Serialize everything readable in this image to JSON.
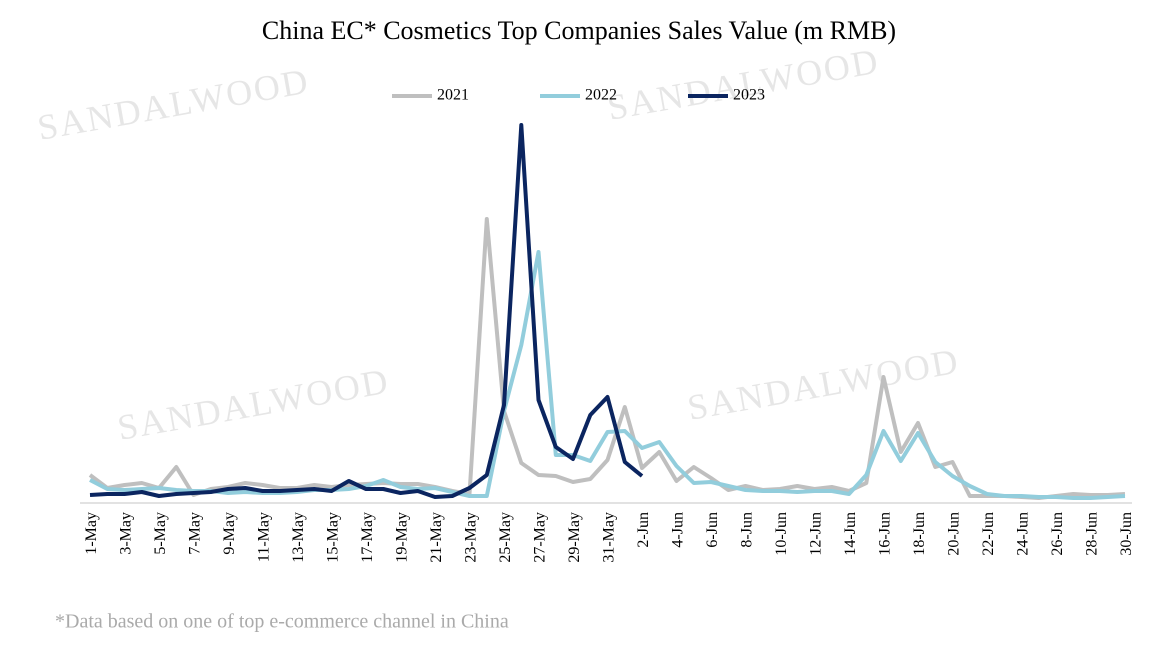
{
  "chart_data": {
    "type": "line",
    "title": "China EC* Cosmetics Top Companies Sales Value (m RMB)",
    "footnote": "*Data based on one of top e-commerce channel in China",
    "watermark": "SANDALWOOD",
    "categories": [
      "1-May",
      null,
      "3-May",
      null,
      "5-May",
      null,
      "7-May",
      null,
      "9-May",
      null,
      "11-May",
      null,
      "13-May",
      null,
      "15-May",
      null,
      "17-May",
      null,
      "19-May",
      null,
      "21-May",
      null,
      "23-May",
      null,
      "25-May",
      null,
      "27-May",
      null,
      "29-May",
      null,
      "31-May",
      null,
      "2-Jun",
      null,
      "4-Jun",
      null,
      "6-Jun",
      null,
      "8-Jun",
      null,
      "10-Jun",
      null,
      "12-Jun",
      null,
      "14-Jun",
      null,
      "16-Jun",
      null,
      "18-Jun",
      null,
      "20-Jun",
      null,
      "22-Jun",
      null,
      "24-Jun",
      null,
      "26-Jun",
      null,
      "28-Jun",
      null,
      "30-Jun"
    ],
    "series": [
      {
        "name": "2021",
        "color": "#bfbfbf",
        "values": [
          7,
          3.75,
          4.5,
          5,
          3.75,
          9,
          2,
          3.5,
          4,
          5,
          4.5,
          3.75,
          3.75,
          4.5,
          4,
          4.5,
          4.75,
          5,
          4.75,
          4.75,
          4,
          3,
          2.25,
          71,
          23,
          10,
          7,
          6.75,
          5.25,
          6,
          10.75,
          24,
          8.75,
          12.75,
          5.5,
          9,
          6.25,
          3.25,
          4.25,
          3.25,
          3.5,
          4.25,
          3.5,
          4,
          3,
          5,
          31.5,
          12.75,
          20,
          9,
          10.25,
          1.75,
          1.75,
          1.75,
          1.5,
          1.25,
          1.75,
          2.25,
          2,
          2,
          2.25
        ]
      },
      {
        "name": "2022",
        "color": "#92cddc",
        "values": [
          5.75,
          3.5,
          3.25,
          3.5,
          3.75,
          3.25,
          3,
          3,
          2.5,
          2.75,
          2.5,
          2.5,
          2.75,
          3.25,
          3.25,
          3.5,
          4.25,
          5.75,
          4,
          3.5,
          3.75,
          2.75,
          1.75,
          1.75,
          23,
          39.5,
          62.75,
          12,
          12,
          10.5,
          17.75,
          18,
          13.75,
          15.25,
          9.25,
          5,
          5.25,
          4.25,
          3.25,
          3,
          3,
          2.75,
          3,
          3,
          2.25,
          7,
          18,
          10.5,
          17.5,
          10.25,
          6.75,
          4.25,
          2.25,
          1.75,
          1.75,
          1.5,
          1.5,
          1.25,
          1.25,
          1.5,
          1.75
        ]
      },
      {
        "name": "2023",
        "color": "#0b2560",
        "values": [
          2,
          2.25,
          2.25,
          2.75,
          1.75,
          2.25,
          2.5,
          2.75,
          3.5,
          3.75,
          3,
          3,
          3.25,
          3.5,
          3,
          5.5,
          3.5,
          3.5,
          2.5,
          3,
          1.5,
          1.75,
          3.75,
          7,
          24.5,
          94.5,
          25.75,
          14,
          11,
          22,
          26.5,
          10.25,
          6.75,
          null,
          null,
          null,
          null,
          null,
          null,
          null,
          null,
          null,
          null,
          null,
          null,
          null,
          null,
          null,
          null,
          null,
          null,
          null,
          null,
          null,
          null,
          null,
          null,
          null,
          null,
          null,
          null
        ]
      }
    ],
    "ylim": [
      0,
      100
    ],
    "legend": "top"
  }
}
